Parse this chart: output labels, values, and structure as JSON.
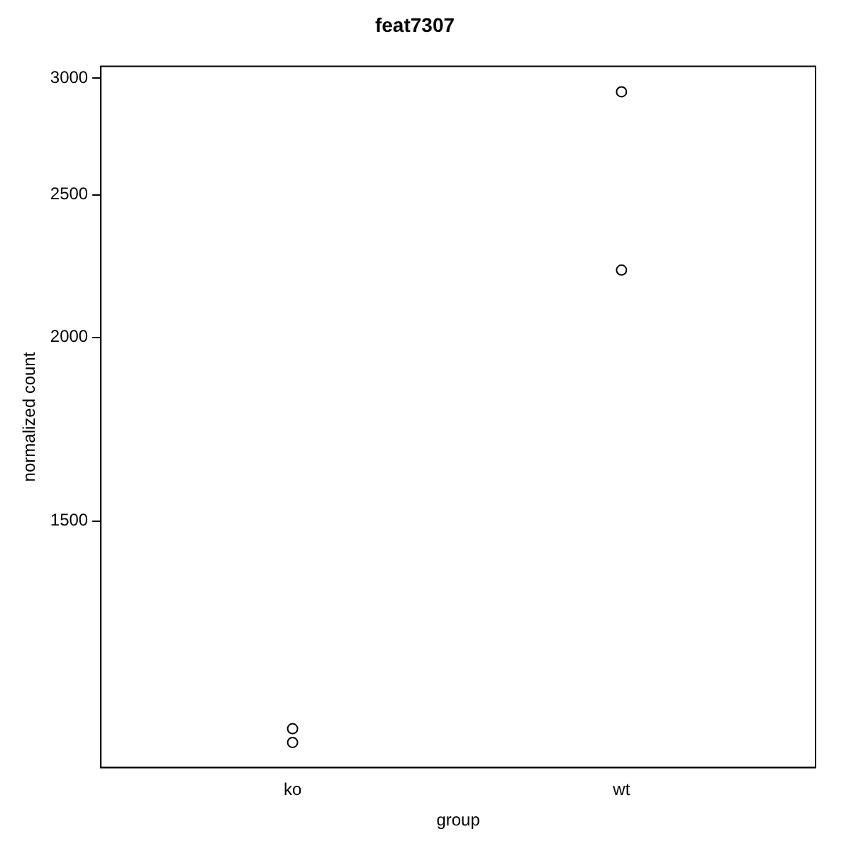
{
  "chart_data": {
    "type": "scatter",
    "title": "feat7307",
    "xlabel": "group",
    "ylabel": "normalized count",
    "categories": [
      "ko",
      "wt"
    ],
    "series": [
      {
        "color": "#000000",
        "x": [
          "ko",
          "ko",
          "wt",
          "wt"
        ],
        "values": [
          1084,
          1061,
          2937,
          2222
        ]
      }
    ],
    "log": "y",
    "ylim": [
      1020,
      3056
    ],
    "yticks": [
      1500,
      2000,
      2500,
      3000
    ],
    "grid": false,
    "legend": false,
    "marker": "circle"
  }
}
